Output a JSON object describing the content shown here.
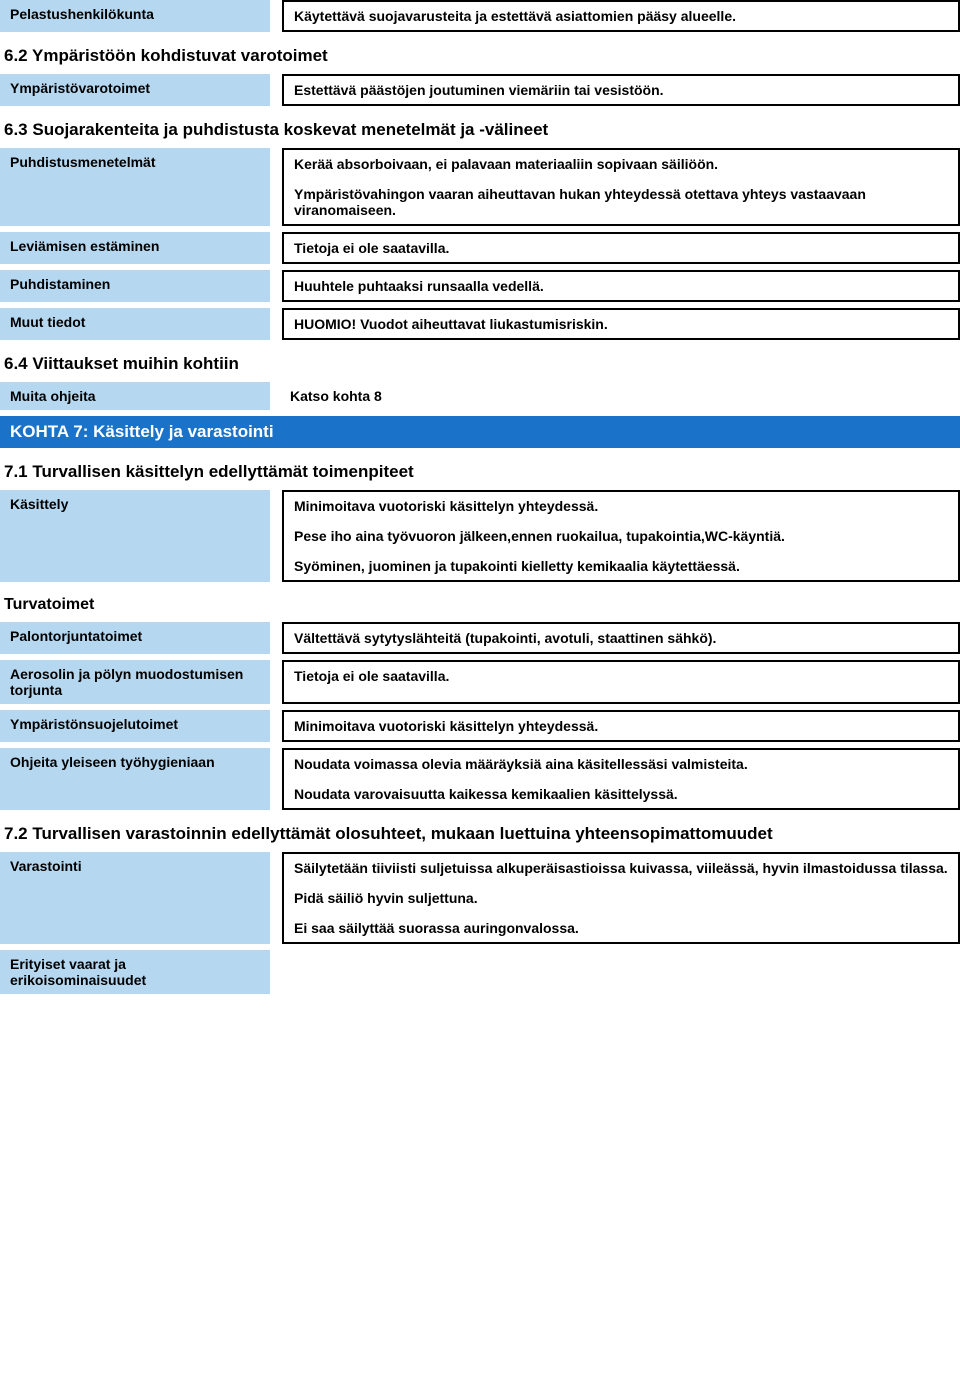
{
  "rows": {
    "pelastus": {
      "label": "Pelastushenkilökunta",
      "value": "Käytettävä suojavarusteita ja estettävä asiattomien pääsy alueelle."
    },
    "h62": "6.2 Ympäristöön kohdistuvat varotoimet",
    "ymparistovarotoimet": {
      "label": "Ympäristövarotoimet",
      "value": "Estettävä päästöjen joutuminen viemäriin tai vesistöön."
    },
    "h63": "6.3 Suojarakenteita ja puhdistusta koskevat menetelmät ja -välineet",
    "puhdistusmenetelmat": {
      "label": "Puhdistusmenetelmät",
      "value1": "Kerää absorboivaan, ei palavaan materiaaliin sopivaan säiliöön.",
      "value2": "Ympäristövahingon vaaran aiheuttavan hukan yhteydessä otettava yhteys vastaavaan viranomaiseen."
    },
    "leviaminen": {
      "label": "Leviämisen estäminen",
      "value": "Tietoja ei ole saatavilla."
    },
    "puhdistaminen": {
      "label": "Puhdistaminen",
      "value": "Huuhtele puhtaaksi runsaalla vedellä."
    },
    "muuttiedot": {
      "label": "Muut tiedot",
      "value": "HUOMIO! Vuodot aiheuttavat liukastumisriskin."
    },
    "h64": "6.4 Viittaukset muihin kohtiin",
    "muitaohjeita": {
      "label": "Muita ohjeita",
      "value": "Katso kohta 8"
    },
    "kohta7": "KOHTA 7: Käsittely ja varastointi",
    "h71": "7.1 Turvallisen käsittelyn edellyttämät toimenpiteet",
    "kasittely": {
      "label": "Käsittely",
      "value1": "Minimoitava vuotoriski käsittelyn yhteydessä.",
      "value2": "Pese iho aina työvuoron jälkeen,ennen ruokailua, tupakointia,WC-käyntiä.",
      "value3": "Syöminen, juominen ja tupakointi kielletty kemikaalia käytettäessä."
    },
    "turvatoimet": "Turvatoimet",
    "palontorjunta": {
      "label": "Palontorjuntatoimet",
      "value": "Vältettävä sytytyslähteitä (tupakointi, avotuli, staattinen sähkö)."
    },
    "aerosolin": {
      "label": "Aerosolin ja pölyn muodostumisen torjunta",
      "value": "Tietoja ei ole saatavilla."
    },
    "ymparistonsuojelu": {
      "label": "Ympäristönsuojelutoimet",
      "value": "Minimoitava vuotoriski käsittelyn yhteydessä."
    },
    "ohjeita": {
      "label": "Ohjeita yleiseen työhygieniaan",
      "value1": "Noudata voimassa olevia määräyksiä aina käsitellessäsi valmisteita.",
      "value2": "Noudata varovaisuutta kaikessa kemikaalien käsittelyssä."
    },
    "h72": "7.2 Turvallisen varastoinnin edellyttämät olosuhteet, mukaan luettuina yhteensopimattomuudet",
    "varastointi": {
      "label": "Varastointi",
      "value1": "Säilytetään tiiviisti suljetuissa alkuperäisastioissa kuivassa, viileässä, hyvin ilmastoidussa tilassa.",
      "value2": "Pidä säiliö hyvin suljettuna.",
      "value3": "Ei saa säilyttää suorassa auringonvalossa."
    },
    "erityiset": {
      "label": "Erityiset vaarat ja erikoisominaisuudet"
    }
  }
}
